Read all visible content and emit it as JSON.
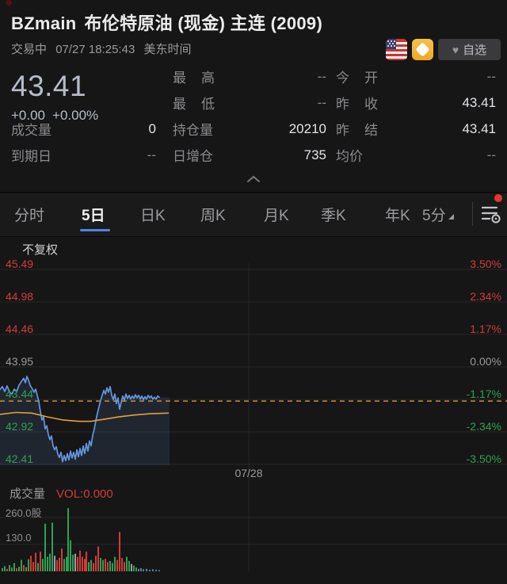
{
  "colors": {
    "red": "#d03c38",
    "green": "#2fa052",
    "neutral": "#9aa0a6",
    "blue_line": "#6596e0",
    "area_fill": "rgba(86,125,186,0.16)",
    "ma_orange": "#e2a03a",
    "dashed_orange": "#cf8c2e",
    "grid": "#272727",
    "tab_accent": "#4a86e8",
    "tiny_bar": "#5f7d91"
  },
  "header": {
    "symbol": "BZmain",
    "name": "布伦特原油 (现金) 主连 (2009)",
    "status": "交易中",
    "datetime": "07/27 18:25:43",
    "timezone": "美东时间",
    "fav_label": "自选",
    "fav_icon": "heart-icon",
    "flag_icon": "us-flag-icon",
    "gem_icon": "gold-gem-icon"
  },
  "quote": {
    "price": "43.41",
    "change": "+0.00",
    "change_pct": "+0.00%",
    "vol_label": "成交量",
    "vol_value": "0",
    "expiry_label": "到期日",
    "expiry_value": "--",
    "high_label": "最高",
    "high_value": "--",
    "low_label": "最低",
    "low_value": "--",
    "oi_label": "持仓量",
    "oi_value": "20210",
    "oi_delta_label": "日增仓",
    "oi_delta_value": "735",
    "open_label": "今开",
    "open_value": "--",
    "prev_close_label": "昨收",
    "prev_close_value": "43.41",
    "prev_settle_label": "昨结",
    "prev_settle_value": "43.41",
    "avg_label": "均价",
    "avg_value": "--"
  },
  "tabs": [
    {
      "label": "分时",
      "active": false
    },
    {
      "label": "5日",
      "active": true
    },
    {
      "label": "日K",
      "active": false
    },
    {
      "label": "周K",
      "active": false
    },
    {
      "label": "月K",
      "active": false
    },
    {
      "label": "季K",
      "active": false
    },
    {
      "label": "年K",
      "active": false
    },
    {
      "label": "5分",
      "active": false,
      "dropdown": true
    }
  ],
  "chart_data": {
    "type": "line",
    "title": "5日分时图 (5-day intraday)",
    "adjust_label": "不复权",
    "x_label": "07/28",
    "price_axis": {
      "left_labels": [
        "45.49",
        "44.98",
        "44.46",
        "43.95",
        "43.44",
        "42.92",
        "42.41"
      ],
      "right_labels": [
        "3.50%",
        "2.34%",
        "1.17%",
        "0.00%",
        "-1.17%",
        "-2.34%",
        "-3.50%"
      ],
      "label_colors": [
        "red",
        "red",
        "red",
        "neutral",
        "green",
        "green",
        "green"
      ],
      "top_price": 45.49,
      "bottom_price": 42.41
    },
    "prev_settle_line": 43.41,
    "series": [
      {
        "name": "price",
        "color": "#6596e0",
        "points": [
          [
            0,
            43.59
          ],
          [
            3,
            43.64
          ],
          [
            6,
            43.56
          ],
          [
            9,
            43.65
          ],
          [
            12,
            43.55
          ],
          [
            15,
            43.52
          ],
          [
            18,
            43.6
          ],
          [
            21,
            43.56
          ],
          [
            24,
            43.66
          ],
          [
            27,
            43.72
          ],
          [
            30,
            43.77
          ],
          [
            32,
            43.7
          ],
          [
            34,
            43.8
          ],
          [
            36,
            43.74
          ],
          [
            38,
            43.66
          ],
          [
            40,
            43.62
          ],
          [
            43,
            43.55
          ],
          [
            45,
            43.6
          ],
          [
            47,
            43.5
          ],
          [
            49,
            43.4
          ],
          [
            51,
            43.24
          ],
          [
            53,
            43.11
          ],
          [
            55,
            43.16
          ],
          [
            57,
            42.97
          ],
          [
            59,
            43.02
          ],
          [
            61,
            42.88
          ],
          [
            63,
            42.8
          ],
          [
            65,
            42.86
          ],
          [
            67,
            42.7
          ],
          [
            69,
            42.64
          ],
          [
            71,
            42.69
          ],
          [
            73,
            42.57
          ],
          [
            75,
            42.52
          ],
          [
            77,
            42.6
          ],
          [
            79,
            42.45
          ],
          [
            81,
            42.55
          ],
          [
            83,
            42.47
          ],
          [
            85,
            42.58
          ],
          [
            87,
            42.48
          ],
          [
            89,
            42.62
          ],
          [
            91,
            42.51
          ],
          [
            93,
            42.6
          ],
          [
            95,
            42.49
          ],
          [
            97,
            42.64
          ],
          [
            99,
            42.53
          ],
          [
            101,
            42.66
          ],
          [
            103,
            42.55
          ],
          [
            105,
            42.7
          ],
          [
            107,
            42.58
          ],
          [
            109,
            42.74
          ],
          [
            111,
            42.62
          ],
          [
            113,
            42.78
          ],
          [
            115,
            42.7
          ],
          [
            117,
            42.87
          ],
          [
            119,
            42.97
          ],
          [
            121,
            43.1
          ],
          [
            123,
            43.22
          ],
          [
            125,
            43.32
          ],
          [
            127,
            43.42
          ],
          [
            129,
            43.5
          ],
          [
            131,
            43.58
          ],
          [
            133,
            43.52
          ],
          [
            135,
            43.62
          ],
          [
            137,
            43.55
          ],
          [
            139,
            43.64
          ],
          [
            141,
            43.5
          ],
          [
            143,
            43.43
          ],
          [
            145,
            43.52
          ],
          [
            147,
            43.37
          ],
          [
            149,
            43.46
          ],
          [
            151,
            43.28
          ],
          [
            153,
            43.39
          ],
          [
            155,
            43.49
          ],
          [
            157,
            43.42
          ],
          [
            159,
            43.52
          ],
          [
            161,
            43.45
          ],
          [
            163,
            43.5
          ],
          [
            165,
            43.44
          ],
          [
            167,
            43.49
          ],
          [
            169,
            43.45
          ],
          [
            171,
            43.51
          ],
          [
            173,
            43.46
          ],
          [
            175,
            43.5
          ],
          [
            177,
            43.44
          ],
          [
            179,
            43.49
          ],
          [
            181,
            43.43
          ],
          [
            183,
            43.48
          ],
          [
            185,
            43.44
          ],
          [
            187,
            43.5
          ],
          [
            189,
            43.46
          ],
          [
            191,
            43.49
          ],
          [
            193,
            43.44
          ],
          [
            195,
            43.47
          ],
          [
            197,
            43.44
          ],
          [
            199,
            43.49
          ],
          [
            201,
            43.47
          ]
        ]
      },
      {
        "name": "ma",
        "color": "#e2a03a",
        "points": [
          [
            0,
            43.2
          ],
          [
            20,
            43.23
          ],
          [
            40,
            43.22
          ],
          [
            60,
            43.16
          ],
          [
            80,
            43.11
          ],
          [
            100,
            43.09
          ],
          [
            115,
            43.09
          ],
          [
            130,
            43.12
          ],
          [
            150,
            43.16
          ],
          [
            170,
            43.19
          ],
          [
            190,
            43.21
          ],
          [
            213,
            43.22
          ]
        ]
      }
    ],
    "volume": {
      "label": "成交量",
      "vol_text": "VOL:0.000",
      "axis_labels": [
        "260.0股",
        "130.0"
      ],
      "axis_values": [
        260,
        130
      ],
      "bars": [
        [
          2,
          15,
          "g"
        ],
        [
          5,
          25,
          "g"
        ],
        [
          8,
          12,
          "r"
        ],
        [
          11,
          30,
          "g"
        ],
        [
          14,
          18,
          "g"
        ],
        [
          17,
          40,
          "g"
        ],
        [
          20,
          15,
          "r"
        ],
        [
          23,
          22,
          "g"
        ],
        [
          26,
          55,
          "g"
        ],
        [
          29,
          30,
          "r"
        ],
        [
          32,
          20,
          "g"
        ],
        [
          35,
          58,
          "g"
        ],
        [
          38,
          75,
          "r"
        ],
        [
          41,
          45,
          "r"
        ],
        [
          44,
          90,
          "r"
        ],
        [
          47,
          40,
          "g"
        ],
        [
          50,
          95,
          "r"
        ],
        [
          53,
          60,
          "g"
        ],
        [
          56,
          230,
          "g"
        ],
        [
          59,
          70,
          "g"
        ],
        [
          62,
          85,
          "g"
        ],
        [
          65,
          235,
          "g"
        ],
        [
          68,
          75,
          "n"
        ],
        [
          71,
          55,
          "r"
        ],
        [
          74,
          65,
          "r"
        ],
        [
          77,
          110,
          "r"
        ],
        [
          80,
          60,
          "g"
        ],
        [
          83,
          70,
          "g"
        ],
        [
          85,
          305,
          "g"
        ],
        [
          88,
          150,
          "g"
        ],
        [
          91,
          80,
          "g"
        ],
        [
          94,
          85,
          "n"
        ],
        [
          97,
          70,
          "r"
        ],
        [
          100,
          100,
          "r"
        ],
        [
          103,
          70,
          "r"
        ],
        [
          106,
          60,
          "r"
        ],
        [
          108,
          95,
          "r"
        ],
        [
          111,
          45,
          "g"
        ],
        [
          114,
          55,
          "g"
        ],
        [
          117,
          40,
          "r"
        ],
        [
          120,
          75,
          "r"
        ],
        [
          123,
          120,
          "r"
        ],
        [
          126,
          65,
          "g"
        ],
        [
          129,
          55,
          "g"
        ],
        [
          132,
          60,
          "r"
        ],
        [
          135,
          45,
          "r"
        ],
        [
          138,
          50,
          "g"
        ],
        [
          141,
          40,
          "g"
        ],
        [
          144,
          70,
          "g"
        ],
        [
          147,
          55,
          "r"
        ],
        [
          150,
          190,
          "r"
        ],
        [
          153,
          65,
          "r"
        ],
        [
          156,
          45,
          "r"
        ],
        [
          159,
          70,
          "g"
        ],
        [
          162,
          50,
          "g"
        ],
        [
          165,
          35,
          "n"
        ],
        [
          168,
          28,
          "g"
        ],
        [
          171,
          18,
          "g"
        ],
        [
          174,
          12,
          "b"
        ],
        [
          177,
          15,
          "b"
        ],
        [
          180,
          10,
          "b"
        ],
        [
          184,
          12,
          "b"
        ],
        [
          188,
          8,
          "b"
        ],
        [
          192,
          10,
          "b"
        ],
        [
          196,
          8,
          "b"
        ],
        [
          200,
          6,
          "b"
        ]
      ]
    }
  }
}
